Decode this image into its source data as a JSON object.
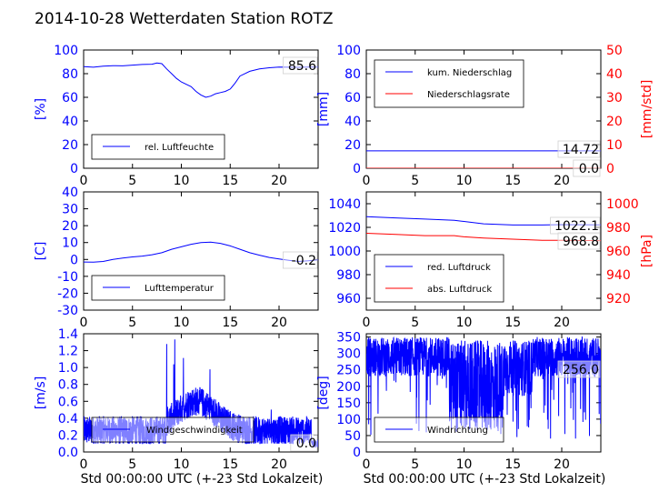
{
  "title": "2014-10-28 Wetterdaten Station ROTZ",
  "colors": {
    "blue": "#0000ff",
    "red": "#ff0000",
    "black": "#000000"
  },
  "chart_data": [
    {
      "type": "line",
      "ylabel": "[%]",
      "xlim": [
        0,
        24
      ],
      "ylim": [
        0,
        100
      ],
      "xticks": [
        0,
        5,
        10,
        15,
        20
      ],
      "yticks": [
        0,
        20,
        40,
        60,
        80,
        100
      ],
      "series": [
        {
          "name": "rel. Luftfeuchte",
          "color": "#0000ff",
          "points": [
            [
              0,
              86
            ],
            [
              1,
              85.5
            ],
            [
              2,
              86.3
            ],
            [
              3,
              86.8
            ],
            [
              4,
              86.6
            ],
            [
              5,
              87.2
            ],
            [
              6,
              87.8
            ],
            [
              7,
              88
            ],
            [
              7.5,
              89
            ],
            [
              8,
              88.5
            ],
            [
              8.5,
              84
            ],
            [
              9,
              80
            ],
            [
              9.5,
              76
            ],
            [
              10,
              73
            ],
            [
              10.5,
              71
            ],
            [
              11,
              69
            ],
            [
              11.5,
              65
            ],
            [
              12,
              62
            ],
            [
              12.5,
              60
            ],
            [
              13,
              61
            ],
            [
              13.5,
              63
            ],
            [
              14,
              64
            ],
            [
              14.5,
              65
            ],
            [
              15,
              67
            ],
            [
              15.5,
              72
            ],
            [
              16,
              78
            ],
            [
              17,
              82
            ],
            [
              18,
              84
            ],
            [
              19,
              85
            ],
            [
              20,
              85.6
            ],
            [
              21,
              85.5
            ],
            [
              22,
              85.4
            ],
            [
              23,
              85.6
            ],
            [
              24,
              85.6
            ]
          ]
        }
      ],
      "value_box": "85.6",
      "legend_position": "lower-left"
    },
    {
      "type": "line",
      "ylabel": "[mm]",
      "ylabel_right": "[mm/std]",
      "xlim": [
        0,
        24
      ],
      "ylim": [
        0,
        100
      ],
      "ylim_right": [
        0,
        50
      ],
      "xticks": [
        0,
        5,
        10,
        15,
        20
      ],
      "yticks": [
        0,
        20,
        40,
        60,
        80,
        100
      ],
      "yticks_right": [
        0,
        10,
        20,
        30,
        40,
        50
      ],
      "series": [
        {
          "name": "kum. Niederschlag",
          "color": "#0000ff",
          "points": [
            [
              0,
              14.72
            ],
            [
              24,
              14.72
            ]
          ]
        },
        {
          "name": "Niederschlagsrate",
          "color": "#ff0000",
          "axis": "right",
          "points": [
            [
              0,
              0
            ],
            [
              24,
              0
            ]
          ]
        }
      ],
      "value_boxes": [
        "14.72",
        "0.0"
      ],
      "legend_position": "upper-left"
    },
    {
      "type": "line",
      "ylabel": "[C]",
      "xlim": [
        0,
        24
      ],
      "ylim": [
        -30,
        40
      ],
      "xticks": [
        0,
        5,
        10,
        15,
        20
      ],
      "yticks": [
        -30,
        -20,
        -10,
        0,
        10,
        20,
        30,
        40
      ],
      "series": [
        {
          "name": "Lufttemperatur",
          "color": "#0000ff",
          "points": [
            [
              0,
              -1.5
            ],
            [
              1,
              -1.6
            ],
            [
              2,
              -1.2
            ],
            [
              3,
              0
            ],
            [
              4,
              0.8
            ],
            [
              5,
              1.5
            ],
            [
              6,
              2
            ],
            [
              7,
              2.8
            ],
            [
              8,
              4
            ],
            [
              9,
              6
            ],
            [
              10,
              7.5
            ],
            [
              11,
              9
            ],
            [
              12,
              10
            ],
            [
              13,
              10.2
            ],
            [
              14,
              9.5
            ],
            [
              15,
              8
            ],
            [
              16,
              6
            ],
            [
              17,
              4
            ],
            [
              18,
              2.5
            ],
            [
              19,
              1.2
            ],
            [
              20,
              0.3
            ],
            [
              21,
              -0.5
            ],
            [
              22,
              -1.2
            ],
            [
              23,
              -0.8
            ],
            [
              24,
              -0.2
            ]
          ]
        }
      ],
      "value_box": "-0.2",
      "legend_position": "lower-left"
    },
    {
      "type": "line",
      "ylabel_right": "[hPa]",
      "xlim": [
        0,
        24
      ],
      "ylim": [
        950,
        1050
      ],
      "ylim_right": [
        910,
        1010
      ],
      "xticks": [
        0,
        5,
        10,
        15,
        20
      ],
      "yticks": [
        960,
        980,
        1000,
        1020,
        1040
      ],
      "yticks_right": [
        920,
        940,
        960,
        980,
        1000
      ],
      "series": [
        {
          "name": "red. Luftdruck",
          "color": "#0000ff",
          "points": [
            [
              0,
              1029
            ],
            [
              3,
              1028
            ],
            [
              6,
              1027
            ],
            [
              9,
              1026
            ],
            [
              10,
              1025
            ],
            [
              12,
              1023
            ],
            [
              15,
              1022
            ],
            [
              18,
              1022
            ],
            [
              20,
              1022.3
            ],
            [
              24,
              1022.1
            ]
          ]
        },
        {
          "name": "abs. Luftdruck",
          "color": "#ff0000",
          "axis": "right",
          "points": [
            [
              0,
              975
            ],
            [
              3,
              974
            ],
            [
              6,
              973
            ],
            [
              9,
              973
            ],
            [
              10,
              972
            ],
            [
              12,
              971
            ],
            [
              15,
              970
            ],
            [
              18,
              969
            ],
            [
              20,
              969
            ],
            [
              24,
              968.8
            ]
          ]
        }
      ],
      "value_boxes": [
        "1022.1",
        "968.8"
      ],
      "legend_position": "lower-left"
    },
    {
      "type": "line",
      "ylabel": "[m/s]",
      "xlim": [
        0,
        24
      ],
      "ylim": [
        0,
        1.4
      ],
      "xticks": [
        0,
        5,
        10,
        15,
        20
      ],
      "yticks": [
        0.0,
        0.2,
        0.4,
        0.6,
        0.8,
        1.0,
        1.2,
        1.4
      ],
      "series": [
        {
          "name": "Windgeschwindigkeit",
          "color": "#0000ff"
        }
      ],
      "value_box": "0.0",
      "legend_position": "lower-center"
    },
    {
      "type": "line",
      "ylabel": "[deg]",
      "xlim": [
        0,
        24
      ],
      "ylim": [
        0,
        360
      ],
      "xticks": [
        0,
        5,
        10,
        15,
        20
      ],
      "yticks": [
        0,
        50,
        100,
        150,
        200,
        250,
        300,
        350
      ],
      "series": [
        {
          "name": "Windrichtung",
          "color": "#0000ff"
        }
      ],
      "value_box": "256.0",
      "legend_position": "lower-left"
    }
  ],
  "xlabel": "Std 00:00:00 UTC (+-23 Std Lokalzeit)"
}
